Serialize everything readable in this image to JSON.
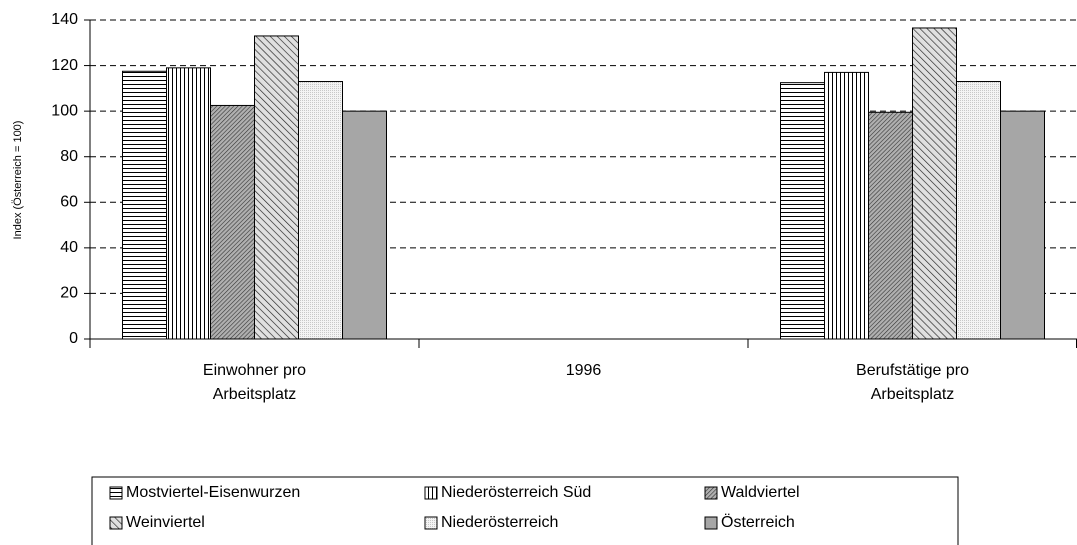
{
  "chart_data": {
    "type": "bar",
    "y_axis_label": "Index (Österreich = 100)",
    "categories": [
      "Einwohner pro Arbeitsplatz",
      "1996",
      "Berufstätige pro Arbeitsplatz"
    ],
    "series": [
      {
        "name": "Mostviertel-Eisenwurzen",
        "color": "#ffffff",
        "pattern": "horizontal",
        "values": [
          117.5,
          null,
          112.5
        ]
      },
      {
        "name": "Niederösterreich Süd",
        "color": "#ffffff",
        "pattern": "vertical",
        "values": [
          119,
          null,
          117
        ]
      },
      {
        "name": "Waldviertel",
        "color": "#b0b0b0",
        "pattern": "dense-diagonal",
        "values": [
          102.5,
          null,
          99.5
        ]
      },
      {
        "name": "Weinviertel",
        "color": "#d8d8d8",
        "pattern": "diagonal",
        "values": [
          133,
          null,
          136.5
        ]
      },
      {
        "name": "Niederösterreich",
        "color": "#f0f0f0",
        "pattern": "dots",
        "values": [
          113,
          null,
          113
        ]
      },
      {
        "name": "Österreich",
        "color": "#a6a6a6",
        "pattern": "solid",
        "values": [
          100,
          null,
          100
        ]
      }
    ],
    "ylim": [
      0,
      140
    ],
    "yticks": [
      0,
      20,
      40,
      60,
      80,
      100,
      120,
      140
    ],
    "grid": true
  }
}
